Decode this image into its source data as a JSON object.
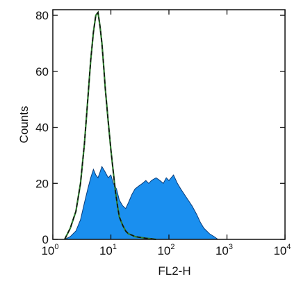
{
  "chart_data": {
    "type": "area",
    "xlabel": "FL2-H",
    "ylabel": "Counts",
    "xscale": "log",
    "xlim": [
      1,
      10000
    ],
    "ylim": [
      0,
      82
    ],
    "grid": false,
    "x_ticks": [
      {
        "base": "10",
        "exp": "0",
        "value": 1
      },
      {
        "base": "10",
        "exp": "1",
        "value": 10
      },
      {
        "base": "10",
        "exp": "2",
        "value": 100
      },
      {
        "base": "10",
        "exp": "3",
        "value": 1000
      },
      {
        "base": "10",
        "exp": "4",
        "value": 10000
      }
    ],
    "y_ticks": [
      {
        "label": "0",
        "value": 0
      },
      {
        "label": "20",
        "value": 20
      },
      {
        "label": "40",
        "value": 40
      },
      {
        "label": "60",
        "value": 60
      },
      {
        "label": "80",
        "value": 80
      }
    ],
    "series": [
      {
        "style": "filled",
        "color": "#1a8fef",
        "x": [
          1.6,
          2.0,
          2.5,
          3.0,
          3.5,
          4.0,
          4.5,
          5.0,
          5.5,
          6.0,
          6.5,
          7.0,
          7.5,
          8.0,
          9.0,
          10.0,
          11.0,
          12.5,
          14.0,
          16.0,
          18.0,
          20.0,
          23.0,
          26.0,
          30.0,
          35.0,
          40.0,
          45.0,
          50.0,
          60.0,
          70.0,
          80.0,
          90.0,
          100.0,
          120.0,
          140.0,
          160.0,
          200.0,
          250.0,
          300.0,
          350.0,
          400.0,
          500.0,
          600.0,
          700.0
        ],
        "y": [
          0,
          1,
          3,
          7,
          13,
          18,
          22,
          25,
          23,
          22,
          24,
          26,
          25,
          24,
          22,
          23,
          20,
          18,
          14,
          12,
          11,
          13,
          16,
          18,
          19,
          20,
          21,
          20,
          21,
          22,
          21,
          20,
          22,
          21,
          23,
          20,
          18,
          15,
          12,
          9,
          6,
          4,
          2,
          1,
          0
        ]
      },
      {
        "style": "outline",
        "color": "#2e7d2e",
        "x": [
          1.6,
          2.0,
          2.5,
          3.0,
          3.5,
          4.0,
          4.5,
          5.0,
          5.5,
          6.0,
          6.5,
          7.0,
          7.5,
          8.0,
          9.0,
          10.0,
          11.0,
          12.0,
          13.0,
          14.0,
          16.0,
          18.0,
          20.0,
          23.0,
          26.0,
          30.0,
          35.0,
          40.0,
          50.0,
          60.0
        ],
        "y": [
          0,
          4,
          10,
          20,
          34,
          50,
          64,
          74,
          80,
          81,
          76,
          70,
          62,
          54,
          42,
          32,
          24,
          17,
          12,
          8,
          5,
          3,
          2,
          1.5,
          1,
          0.8,
          0.6,
          0.4,
          0.2,
          0
        ]
      }
    ]
  }
}
